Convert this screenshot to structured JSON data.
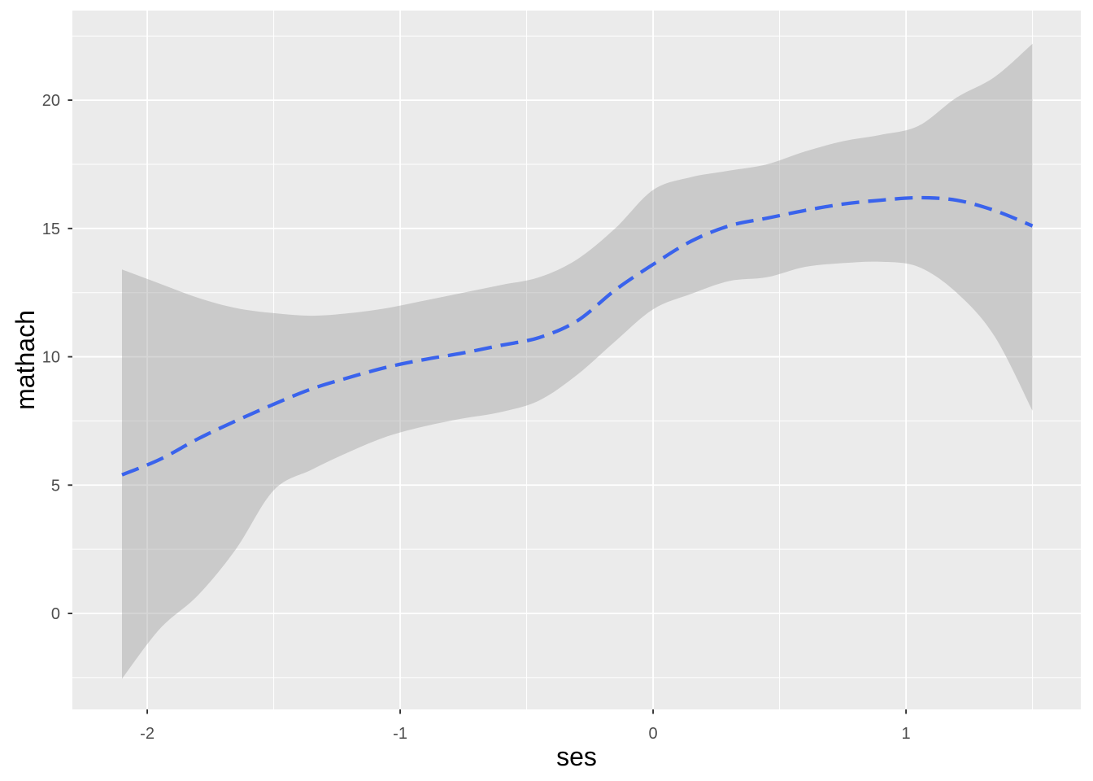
{
  "chart_data": {
    "type": "line",
    "title": "",
    "xlabel": "ses",
    "ylabel": "mathach",
    "legend": "none",
    "grid": "white major and minor gridlines on grey panel",
    "panel_background": "#EBEBEB",
    "figure_background": "#FFFFFF",
    "xlim": [
      -2.296,
      1.691
    ],
    "ylim": [
      -3.74,
      23.49
    ],
    "x_ticks": {
      "values": [
        -2,
        -1,
        0,
        1
      ],
      "labels": [
        "-2",
        "-1",
        "0",
        "1"
      ]
    },
    "y_ticks": {
      "values": [
        0,
        5,
        10,
        15,
        20
      ],
      "labels": [
        "0",
        "5",
        "10",
        "15",
        "20"
      ]
    },
    "x_minor_ticks": [
      -1.5,
      -0.5,
      0.5,
      1.5
    ],
    "y_minor_ticks": [
      -2.5,
      2.5,
      7.5,
      12.5,
      17.5,
      22.5
    ],
    "series": [
      {
        "name": "loess smooth of mathach on ses (dashed blue line with grey confidence ribbon)",
        "x": [
          -2.1,
          -1.95,
          -1.8,
          -1.65,
          -1.5,
          -1.35,
          -1.2,
          -1.05,
          -0.9,
          -0.75,
          -0.6,
          -0.45,
          -0.3,
          -0.15,
          0.0,
          0.15,
          0.3,
          0.45,
          0.6,
          0.75,
          0.9,
          1.05,
          1.2,
          1.35,
          1.5
        ],
        "fit": [
          5.4,
          6.0,
          6.8,
          7.5,
          8.15,
          8.75,
          9.2,
          9.6,
          9.9,
          10.15,
          10.45,
          10.75,
          11.4,
          12.6,
          13.6,
          14.5,
          15.1,
          15.4,
          15.7,
          15.95,
          16.1,
          16.2,
          16.1,
          15.7,
          15.1
        ],
        "lower": [
          -2.55,
          -0.6,
          0.7,
          2.5,
          4.8,
          5.6,
          6.3,
          6.9,
          7.3,
          7.6,
          7.85,
          8.3,
          9.3,
          10.6,
          11.85,
          12.45,
          12.95,
          13.1,
          13.5,
          13.65,
          13.7,
          13.5,
          12.5,
          10.8,
          7.9
        ],
        "upper": [
          13.4,
          12.85,
          12.3,
          11.9,
          11.7,
          11.6,
          11.7,
          11.9,
          12.2,
          12.5,
          12.8,
          13.1,
          13.8,
          15.0,
          16.5,
          17.0,
          17.25,
          17.5,
          18.0,
          18.4,
          18.65,
          19.0,
          20.1,
          20.9,
          22.2
        ]
      }
    ],
    "style": {
      "line_color": "#3A63EC",
      "line_dash": [
        22,
        11
      ],
      "line_width": 4.3,
      "ribbon_fill": "rgba(153,153,153,0.4)",
      "major_grid_color": "#FFFFFF",
      "minor_grid_color": "#FFFFFF",
      "tick_mark_color": "#333333",
      "tick_label_color": "#4D4D4D",
      "axis_title_color": "#000000"
    }
  }
}
